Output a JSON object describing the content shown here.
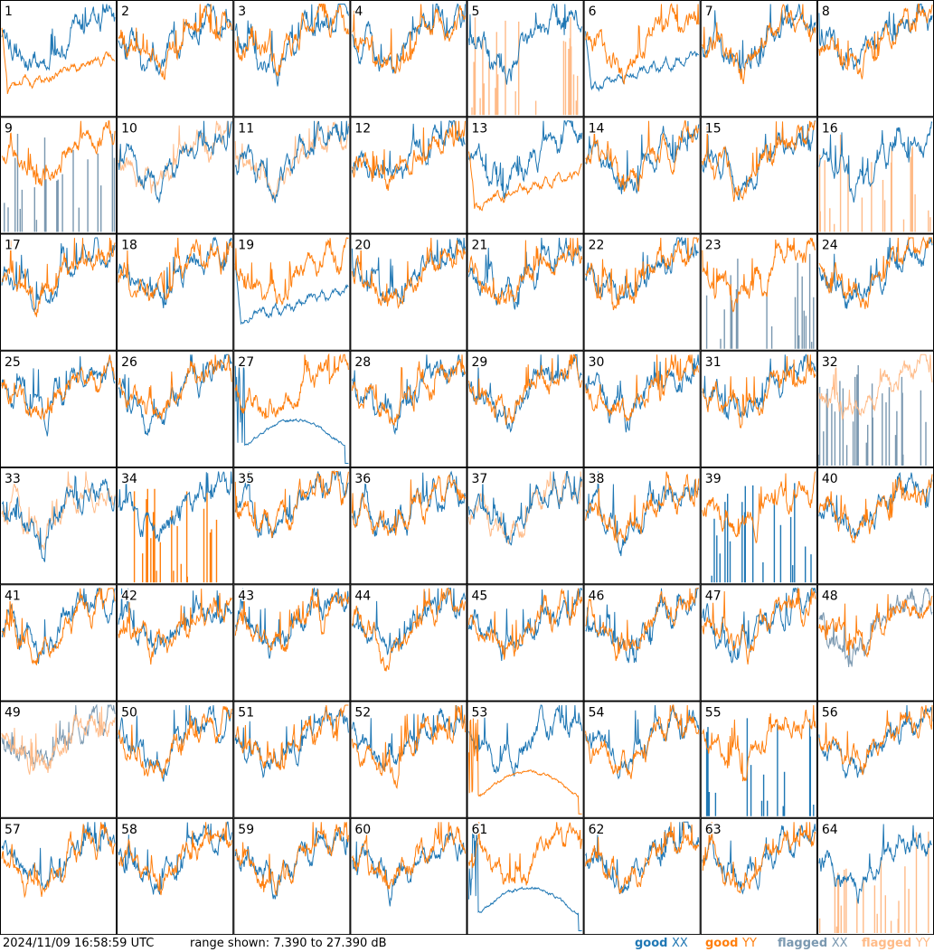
{
  "timestamp": "2024/11/09 16:58:59 UTC",
  "range_text": "range shown: 7.390 to 27.390 dB",
  "legend": [
    {
      "word": "good",
      "pol": "XX",
      "color_word": "#1f77b4",
      "color_pol": "#1f77b4"
    },
    {
      "word": "good",
      "pol": "YY",
      "color_word": "#ff7f0e",
      "color_pol": "#ff7f0e"
    },
    {
      "word": "flagged",
      "pol": "XX",
      "color_word": "#7a98b0",
      "color_pol": "#7a98b0"
    },
    {
      "word": "flagged",
      "pol": "YY",
      "color_word": "#ffbb88",
      "color_pol": "#ffbb88"
    }
  ],
  "colors": {
    "good_xx": "#1f77b4",
    "good_yy": "#ff7f0e",
    "flagged_xx": "#7a98b0",
    "flagged_yy": "#ffbb88",
    "border": "#000000"
  },
  "chart_data": {
    "type": "line",
    "grid": {
      "rows": 8,
      "cols": 8
    },
    "ylim": [
      7.39,
      27.39
    ],
    "y_unit": "dB",
    "series_names": [
      "good XX",
      "good YY",
      "flagged XX",
      "flagged YY"
    ],
    "panels": [
      {
        "id": 1,
        "xx": "normal",
        "yy": "lowdip",
        "xx_state": "good",
        "yy_state": "good"
      },
      {
        "id": 2,
        "xx": "normal",
        "yy": "normal",
        "xx_state": "good",
        "yy_state": "good"
      },
      {
        "id": 3,
        "xx": "normal",
        "yy": "normal",
        "xx_state": "good",
        "yy_state": "good"
      },
      {
        "id": 4,
        "xx": "normal",
        "yy": "normal",
        "xx_state": "good",
        "yy_state": "good"
      },
      {
        "id": 5,
        "xx": "normal",
        "yy": "spikes",
        "xx_state": "good",
        "yy_state": "flagged"
      },
      {
        "id": 6,
        "xx": "lowdip",
        "yy": "normal",
        "xx_state": "good",
        "yy_state": "good"
      },
      {
        "id": 7,
        "xx": "normal",
        "yy": "normal",
        "xx_state": "good",
        "yy_state": "good"
      },
      {
        "id": 8,
        "xx": "normal",
        "yy": "normal",
        "xx_state": "good",
        "yy_state": "good"
      },
      {
        "id": 9,
        "xx": "spikes",
        "yy": "normal",
        "xx_state": "flagged",
        "yy_state": "good"
      },
      {
        "id": 10,
        "xx": "normal",
        "yy": "normal",
        "xx_state": "good",
        "yy_state": "flagged"
      },
      {
        "id": 11,
        "xx": "normal",
        "yy": "normal",
        "xx_state": "good",
        "yy_state": "flagged"
      },
      {
        "id": 12,
        "xx": "normal",
        "yy": "normal",
        "xx_state": "good",
        "yy_state": "good"
      },
      {
        "id": 13,
        "xx": "normal",
        "yy": "lowdip",
        "xx_state": "good",
        "yy_state": "good"
      },
      {
        "id": 14,
        "xx": "normal",
        "yy": "normal",
        "xx_state": "good",
        "yy_state": "good"
      },
      {
        "id": 15,
        "xx": "normal",
        "yy": "normal",
        "xx_state": "good",
        "yy_state": "good"
      },
      {
        "id": 16,
        "xx": "normal",
        "yy": "spikes",
        "xx_state": "good",
        "yy_state": "flagged"
      },
      {
        "id": 17,
        "xx": "normal",
        "yy": "normal",
        "xx_state": "good",
        "yy_state": "good"
      },
      {
        "id": 18,
        "xx": "normal",
        "yy": "normal",
        "xx_state": "good",
        "yy_state": "good"
      },
      {
        "id": 19,
        "xx": "lowdip",
        "yy": "normal",
        "xx_state": "good",
        "yy_state": "good"
      },
      {
        "id": 20,
        "xx": "normal",
        "yy": "normal",
        "xx_state": "good",
        "yy_state": "good"
      },
      {
        "id": 21,
        "xx": "normal",
        "yy": "normal",
        "xx_state": "good",
        "yy_state": "good"
      },
      {
        "id": 22,
        "xx": "normal",
        "yy": "normal",
        "xx_state": "good",
        "yy_state": "good"
      },
      {
        "id": 23,
        "xx": "spikes",
        "yy": "normal",
        "xx_state": "flagged",
        "yy_state": "good"
      },
      {
        "id": 24,
        "xx": "normal",
        "yy": "normal",
        "xx_state": "good",
        "yy_state": "good"
      },
      {
        "id": 25,
        "xx": "normal",
        "yy": "normal",
        "xx_state": "good",
        "yy_state": "good"
      },
      {
        "id": 26,
        "xx": "normal",
        "yy": "normal",
        "xx_state": "good",
        "yy_state": "good"
      },
      {
        "id": 27,
        "xx": "dead",
        "yy": "normal",
        "xx_state": "good",
        "yy_state": "good"
      },
      {
        "id": 28,
        "xx": "normal",
        "yy": "normal",
        "xx_state": "good",
        "yy_state": "good"
      },
      {
        "id": 29,
        "xx": "normal",
        "yy": "normal",
        "xx_state": "good",
        "yy_state": "good"
      },
      {
        "id": 30,
        "xx": "normal",
        "yy": "normal",
        "xx_state": "good",
        "yy_state": "good"
      },
      {
        "id": 31,
        "xx": "normal",
        "yy": "normal",
        "xx_state": "good",
        "yy_state": "good"
      },
      {
        "id": 32,
        "xx": "spikes",
        "yy": "normal",
        "xx_state": "flagged",
        "yy_state": "flagged"
      },
      {
        "id": 33,
        "xx": "normal",
        "yy": "normal",
        "xx_state": "good",
        "yy_state": "flagged"
      },
      {
        "id": 34,
        "xx": "normal",
        "yy": "spikes",
        "xx_state": "good",
        "yy_state": "good"
      },
      {
        "id": 35,
        "xx": "normal",
        "yy": "normal",
        "xx_state": "good",
        "yy_state": "good"
      },
      {
        "id": 36,
        "xx": "normal",
        "yy": "normal",
        "xx_state": "good",
        "yy_state": "good"
      },
      {
        "id": 37,
        "xx": "normal",
        "yy": "normal",
        "xx_state": "good",
        "yy_state": "flagged"
      },
      {
        "id": 38,
        "xx": "normal",
        "yy": "normal",
        "xx_state": "good",
        "yy_state": "good"
      },
      {
        "id": 39,
        "xx": "spikes",
        "yy": "normal",
        "xx_state": "good",
        "yy_state": "good"
      },
      {
        "id": 40,
        "xx": "normal",
        "yy": "normal",
        "xx_state": "good",
        "yy_state": "good"
      },
      {
        "id": 41,
        "xx": "normal",
        "yy": "normal",
        "xx_state": "good",
        "yy_state": "good"
      },
      {
        "id": 42,
        "xx": "normal",
        "yy": "normal",
        "xx_state": "good",
        "yy_state": "good"
      },
      {
        "id": 43,
        "xx": "normal",
        "yy": "normal",
        "xx_state": "good",
        "yy_state": "good"
      },
      {
        "id": 44,
        "xx": "normal",
        "yy": "normal",
        "xx_state": "good",
        "yy_state": "good"
      },
      {
        "id": 45,
        "xx": "normal",
        "yy": "normal",
        "xx_state": "good",
        "yy_state": "good"
      },
      {
        "id": 46,
        "xx": "normal",
        "yy": "normal",
        "xx_state": "good",
        "yy_state": "good"
      },
      {
        "id": 47,
        "xx": "normal",
        "yy": "normal",
        "xx_state": "good",
        "yy_state": "good"
      },
      {
        "id": 48,
        "xx": "normal",
        "yy": "normal",
        "xx_state": "flagged",
        "yy_state": "good"
      },
      {
        "id": 49,
        "xx": "normal",
        "yy": "normal",
        "xx_state": "flagged",
        "yy_state": "flagged"
      },
      {
        "id": 50,
        "xx": "normal",
        "yy": "normal",
        "xx_state": "good",
        "yy_state": "good"
      },
      {
        "id": 51,
        "xx": "normal",
        "yy": "normal",
        "xx_state": "good",
        "yy_state": "good"
      },
      {
        "id": 52,
        "xx": "normal",
        "yy": "normal",
        "xx_state": "good",
        "yy_state": "good"
      },
      {
        "id": 53,
        "xx": "normal",
        "yy": "dead",
        "xx_state": "good",
        "yy_state": "good"
      },
      {
        "id": 54,
        "xx": "normal",
        "yy": "normal",
        "xx_state": "good",
        "yy_state": "good"
      },
      {
        "id": 55,
        "xx": "spikes",
        "yy": "normal",
        "xx_state": "good",
        "yy_state": "good"
      },
      {
        "id": 56,
        "xx": "normal",
        "yy": "normal",
        "xx_state": "good",
        "yy_state": "good"
      },
      {
        "id": 57,
        "xx": "normal",
        "yy": "normal",
        "xx_state": "good",
        "yy_state": "good"
      },
      {
        "id": 58,
        "xx": "normal",
        "yy": "normal",
        "xx_state": "good",
        "yy_state": "good"
      },
      {
        "id": 59,
        "xx": "normal",
        "yy": "normal",
        "xx_state": "good",
        "yy_state": "good"
      },
      {
        "id": 60,
        "xx": "normal",
        "yy": "normal",
        "xx_state": "good",
        "yy_state": "good"
      },
      {
        "id": 61,
        "xx": "dead",
        "yy": "normal",
        "xx_state": "good",
        "yy_state": "good"
      },
      {
        "id": 62,
        "xx": "normal",
        "yy": "normal",
        "xx_state": "good",
        "yy_state": "good"
      },
      {
        "id": 63,
        "xx": "normal",
        "yy": "normal",
        "xx_state": "good",
        "yy_state": "good"
      },
      {
        "id": 64,
        "xx": "normal",
        "yy": "spikes",
        "xx_state": "good",
        "yy_state": "flagged"
      }
    ]
  }
}
